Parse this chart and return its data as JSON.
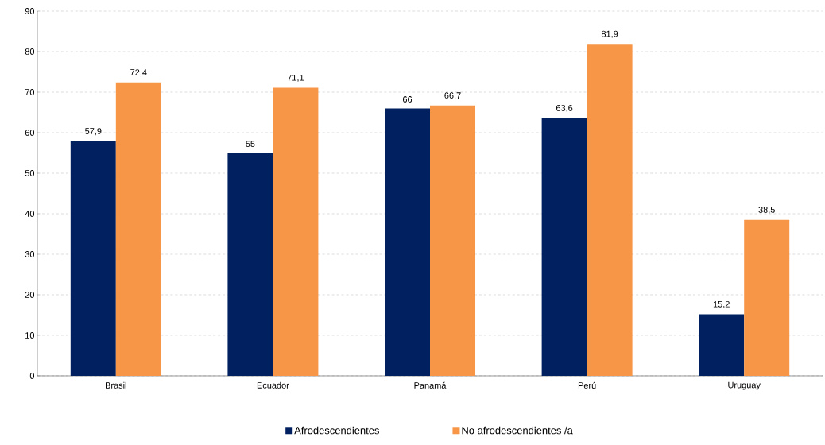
{
  "chart_data": {
    "type": "bar",
    "categories": [
      "Brasil",
      "Ecuador",
      "Panamá",
      "Perú",
      "Uruguay"
    ],
    "series": [
      {
        "name": "Afrodescendientes",
        "color": "#002060",
        "values": [
          57.9,
          55,
          66,
          63.6,
          15.2
        ],
        "value_labels": [
          "57,9",
          "55",
          "66",
          "63,6",
          "15,2"
        ]
      },
      {
        "name": "No afrodescendientes /a",
        "color": "#f79646",
        "values": [
          72.4,
          71.1,
          66.7,
          81.9,
          38.5
        ],
        "value_labels": [
          "72,4",
          "71,1",
          "66,7",
          "81,9",
          "38,5"
        ]
      }
    ],
    "ylim": [
      0,
      90
    ],
    "yticks": [
      0,
      10,
      20,
      30,
      40,
      50,
      60,
      70,
      80,
      90
    ],
    "grid": "y",
    "legend": "bottom"
  }
}
